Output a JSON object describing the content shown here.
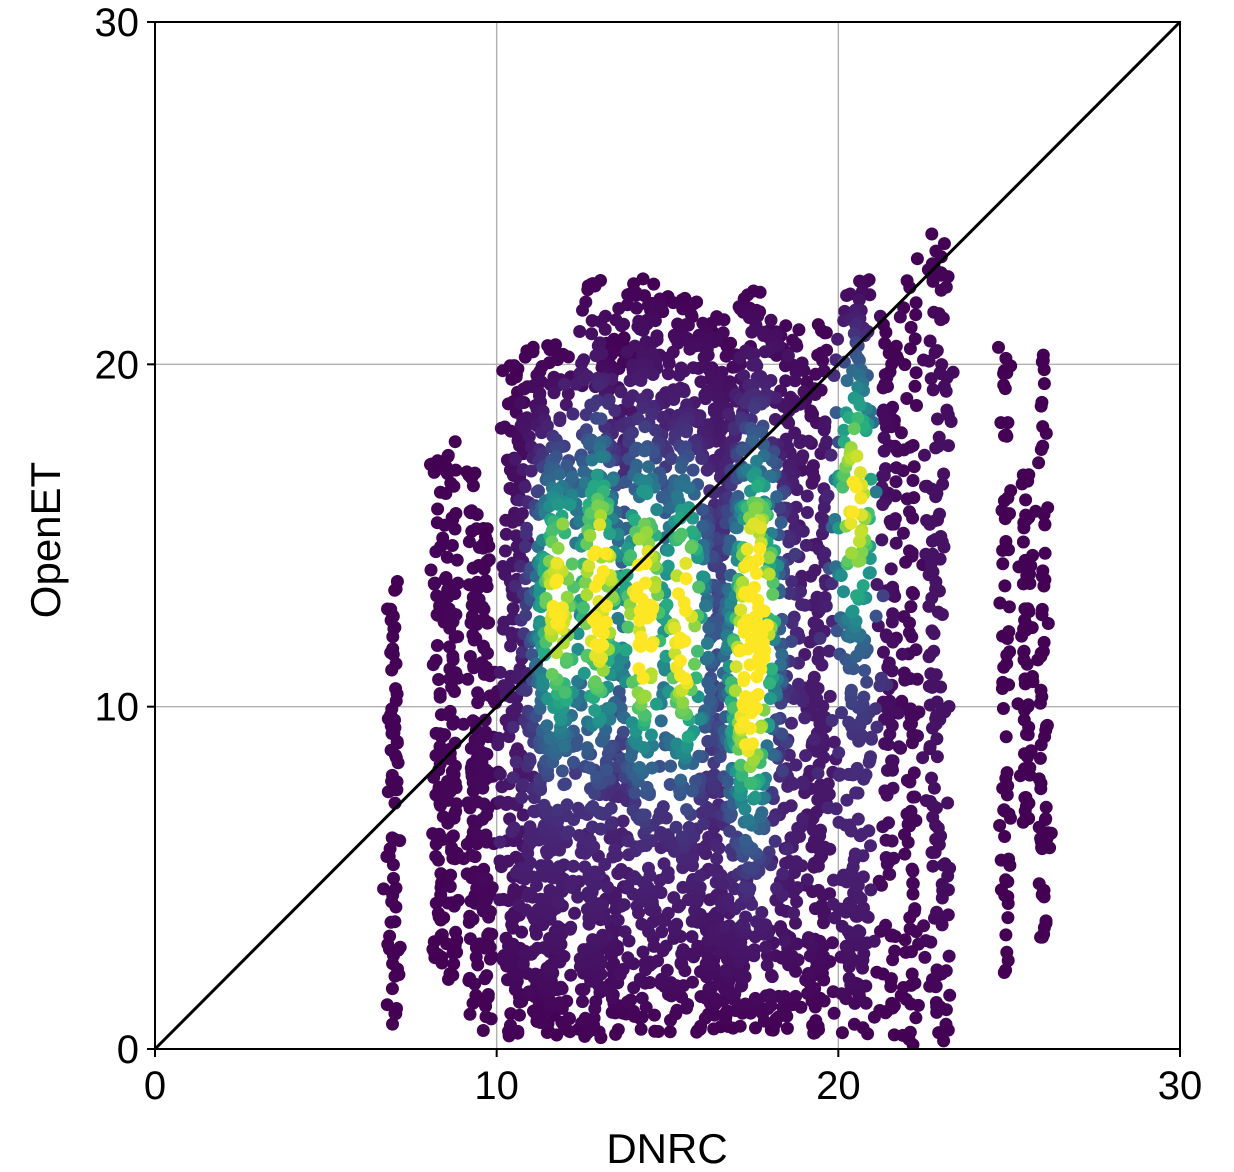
{
  "chart_data": {
    "type": "scatter",
    "title": "",
    "xlabel": "DNRC",
    "ylabel": "OpenET",
    "xlim": [
      0,
      30
    ],
    "ylim": [
      0,
      30
    ],
    "xticks": [
      0,
      10,
      20,
      30
    ],
    "yticks": [
      0,
      10,
      20,
      30
    ],
    "grid": true,
    "reference_line": {
      "type": "1:1",
      "from": [
        0,
        0
      ],
      "to": [
        30,
        30
      ],
      "color": "#000000"
    },
    "colormap": "viridis",
    "color_meaning": "point density",
    "colors": {
      "low_density": "#440154",
      "mid_density": "#21918c",
      "high_density": "#fde725"
    },
    "columns": [
      {
        "x": 7.0,
        "y_range": [
          0.5,
          13.8
        ],
        "peak_density": 0.05
      },
      {
        "x": 8.3,
        "y_range": [
          2.5,
          17.2
        ],
        "peak_density": 0.08
      },
      {
        "x": 8.7,
        "y_range": [
          2.0,
          17.8
        ],
        "peak_density": 0.1
      },
      {
        "x": 9.3,
        "y_range": [
          0.8,
          17.0
        ],
        "peak_density": 0.12
      },
      {
        "x": 9.7,
        "y_range": [
          0.2,
          15.3
        ],
        "peak_density": 0.15
      },
      {
        "x": 10.5,
        "y_range": [
          0.0,
          20.0
        ],
        "peak_density": 0.45
      },
      {
        "x": 11.2,
        "y_range": [
          0.8,
          20.4
        ],
        "peak_density": 0.8
      },
      {
        "x": 11.8,
        "y_range": [
          0.4,
          20.6
        ],
        "peak_density": 0.75
      },
      {
        "x": 12.8,
        "y_range": [
          0.3,
          22.6
        ],
        "peak_density": 0.9
      },
      {
        "x": 13.5,
        "y_range": [
          0.6,
          20.8
        ],
        "peak_density": 0.7
      },
      {
        "x": 14.3,
        "y_range": [
          0.5,
          22.5
        ],
        "peak_density": 0.9
      },
      {
        "x": 15.3,
        "y_range": [
          0.5,
          22.0
        ],
        "peak_density": 0.85
      },
      {
        "x": 16.2,
        "y_range": [
          0.4,
          22.0
        ],
        "peak_density": 0.75
      },
      {
        "x": 16.8,
        "y_range": [
          0.6,
          21.0
        ],
        "peak_density": 0.9
      },
      {
        "x": 17.6,
        "y_range": [
          0.5,
          22.3
        ],
        "peak_density": 1.0
      },
      {
        "x": 18.5,
        "y_range": [
          0.5,
          21.6
        ],
        "peak_density": 0.7
      },
      {
        "x": 19.4,
        "y_range": [
          0.4,
          21.2
        ],
        "peak_density": 0.5
      },
      {
        "x": 20.5,
        "y_range": [
          0.3,
          22.5
        ],
        "peak_density": 0.85
      },
      {
        "x": 21.5,
        "y_range": [
          0.4,
          21.2
        ],
        "peak_density": 0.25
      },
      {
        "x": 22.1,
        "y_range": [
          0.0,
          23.1
        ],
        "peak_density": 0.15
      },
      {
        "x": 22.9,
        "y_range": [
          0.2,
          23.9
        ],
        "peak_density": 0.35
      },
      {
        "x": 24.9,
        "y_range": [
          2.2,
          20.6
        ],
        "peak_density": 0.02
      },
      {
        "x": 25.5,
        "y_range": [
          6.5,
          17.0
        ],
        "peak_density": 0.02
      },
      {
        "x": 26.0,
        "y_range": [
          3.1,
          20.4
        ],
        "peak_density": 0.02
      }
    ],
    "density_peaks": [
      {
        "x": 11.8,
        "y": 13.2
      },
      {
        "x": 13.0,
        "y": 13.5
      },
      {
        "x": 14.3,
        "y": 12.8
      },
      {
        "x": 15.5,
        "y": 12.5
      },
      {
        "x": 17.6,
        "y": 13.2
      },
      {
        "x": 17.4,
        "y": 11.0
      },
      {
        "x": 20.5,
        "y": 16.5
      }
    ]
  }
}
